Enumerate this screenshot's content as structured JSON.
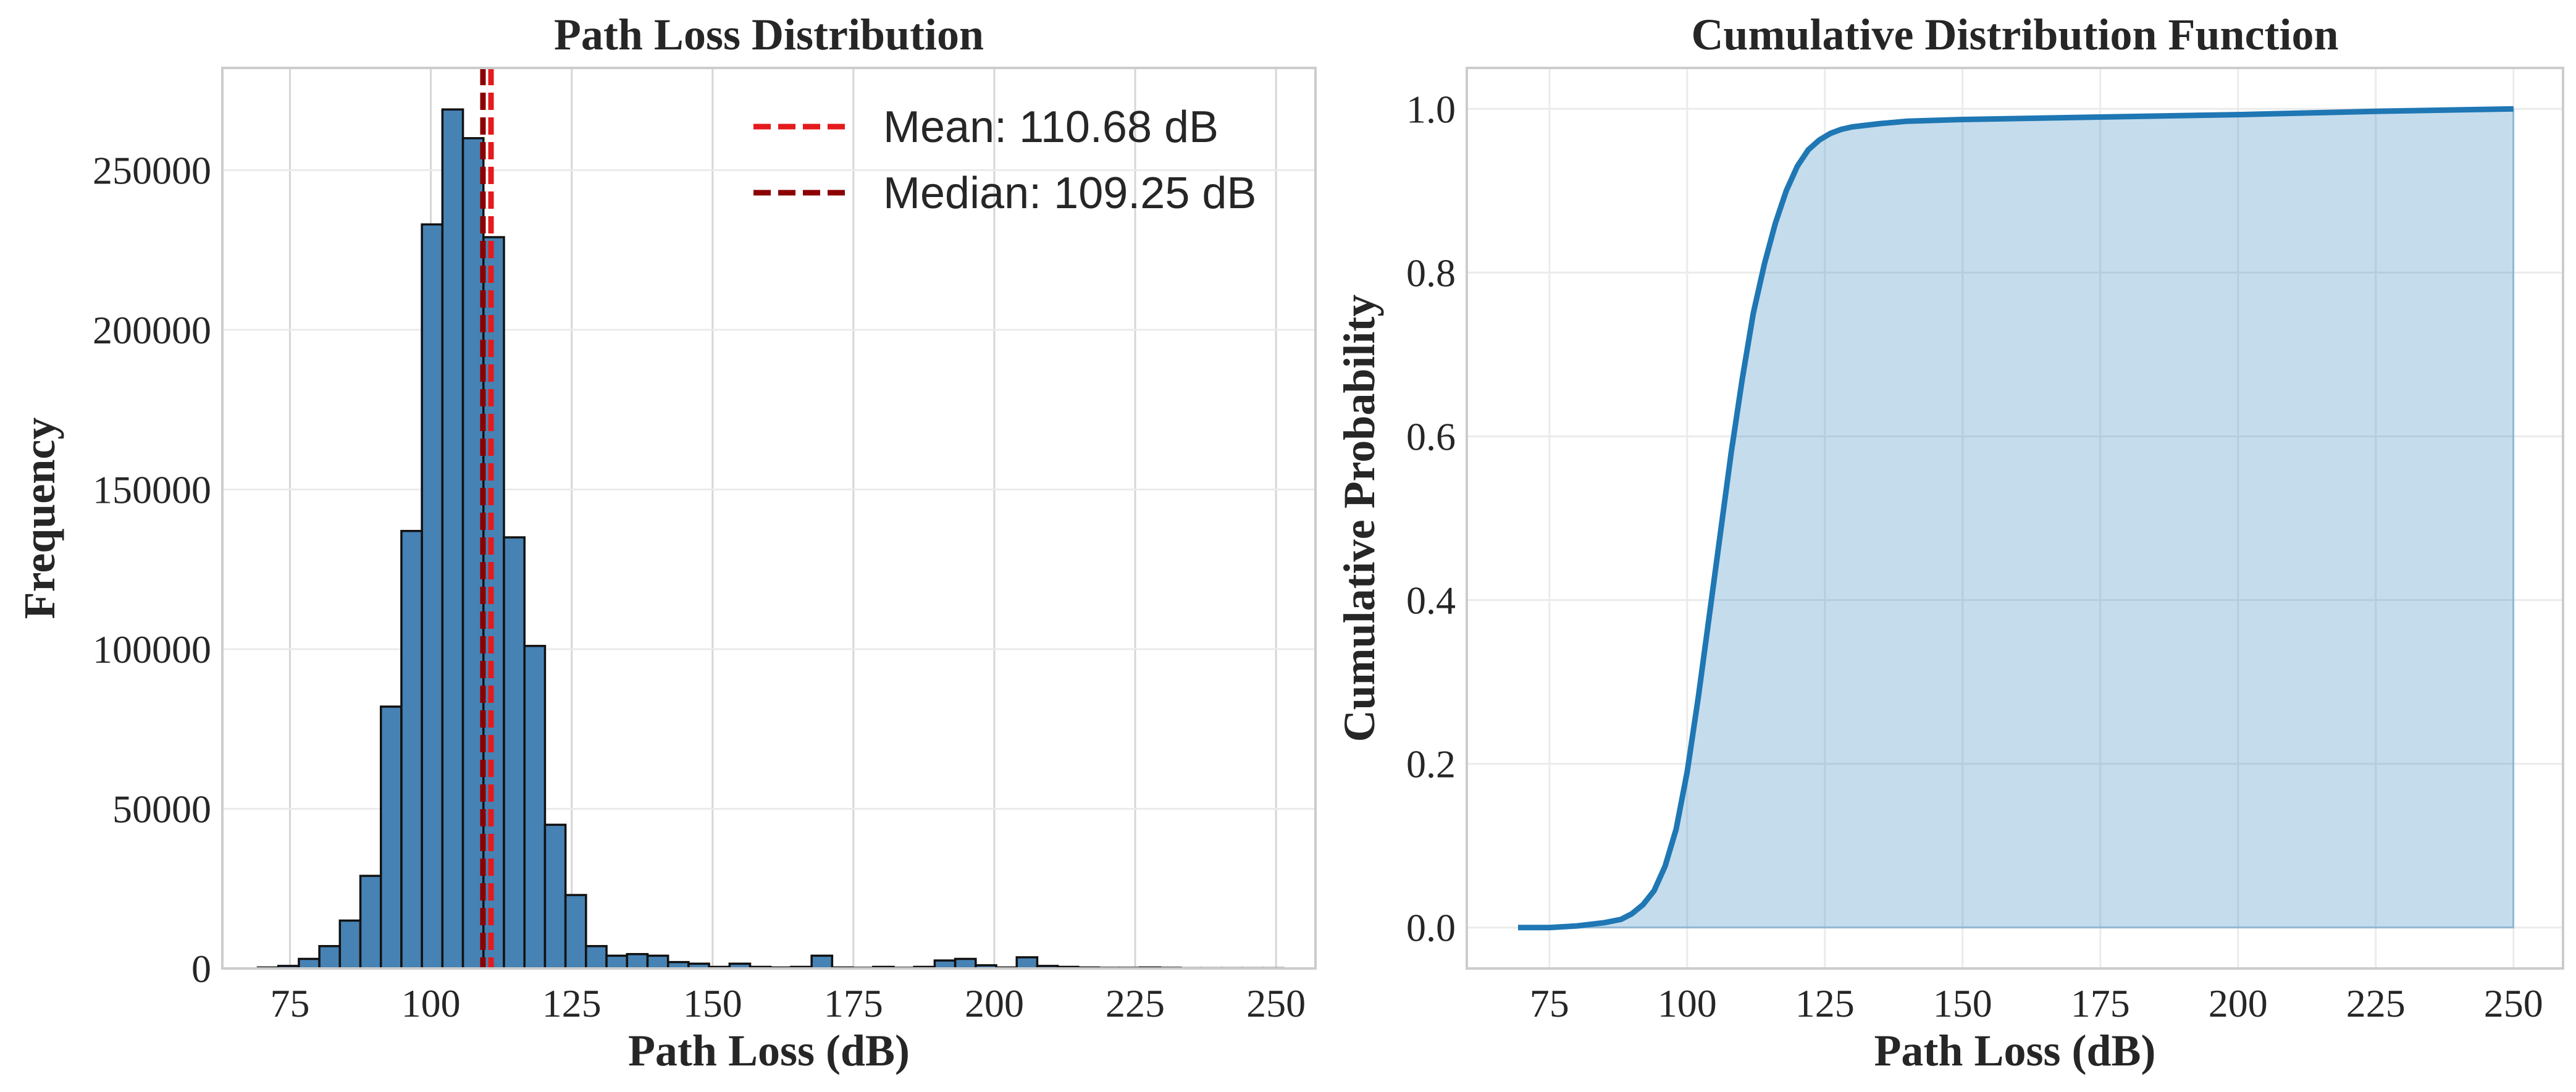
{
  "chart_data": [
    {
      "type": "bar",
      "title": "Path Loss Distribution",
      "xlabel": "Path Loss (dB)",
      "ylabel": "Frequency",
      "xlim": [
        63,
        257
      ],
      "ylim": [
        0,
        282000
      ],
      "xticks": [
        75,
        100,
        125,
        150,
        175,
        200,
        225,
        250
      ],
      "yticks": [
        0,
        50000,
        100000,
        150000,
        200000,
        250000
      ],
      "xtick_labels": [
        "75",
        "100",
        "125",
        "150",
        "175",
        "200",
        "225",
        "250"
      ],
      "ytick_labels": [
        "0",
        "50000",
        "100000",
        "150000",
        "200000",
        "250000"
      ],
      "grid": true,
      "bin_edges": [
        69.3,
        72.94,
        76.58,
        80.22,
        83.86,
        87.5,
        91.14,
        94.78,
        98.42,
        102.06,
        105.7,
        109.34,
        112.98,
        116.62,
        120.26,
        123.9,
        127.54,
        131.18,
        134.82,
        138.46,
        142.1,
        145.74,
        149.38,
        153.02,
        156.66,
        160.3,
        163.94,
        167.58,
        171.22,
        174.86,
        178.5,
        182.14,
        185.78,
        189.42,
        193.06,
        196.7,
        200.34,
        203.98,
        207.62,
        211.26,
        214.9,
        218.54,
        222.18,
        225.82,
        229.46,
        233.1,
        236.74,
        240.38,
        244.02,
        247.66,
        251.3
      ],
      "values": [
        300,
        800,
        3000,
        7000,
        15000,
        29000,
        82000,
        137000,
        233000,
        269000,
        260000,
        229000,
        135000,
        101000,
        45000,
        23000,
        7000,
        4000,
        4500,
        4000,
        2000,
        1500,
        500,
        1500,
        500,
        300,
        500,
        4000,
        300,
        200,
        500,
        200,
        500,
        2500,
        3000,
        1000,
        300,
        3500,
        800,
        500,
        300,
        200,
        200,
        300,
        200,
        100,
        100,
        100,
        100,
        100
      ],
      "vlines": [
        {
          "label": "Mean: 110.68 dB",
          "x": 110.68,
          "color": "#e41a1c",
          "style": "dashed"
        },
        {
          "label": "Median: 109.25 dB",
          "x": 109.25,
          "color": "#8b0000",
          "style": "dashed"
        }
      ],
      "bar_color": "#4682b4",
      "legend_position": "top-right"
    },
    {
      "type": "area",
      "title": "Cumulative Distribution Function",
      "xlabel": "Path Loss (dB)",
      "ylabel": "Cumulative Probability",
      "xlim": [
        60,
        259
      ],
      "ylim": [
        -0.05,
        1.05
      ],
      "xticks": [
        75,
        100,
        125,
        150,
        175,
        200,
        225,
        250
      ],
      "yticks": [
        0.0,
        0.2,
        0.4,
        0.6,
        0.8,
        1.0
      ],
      "xtick_labels": [
        "75",
        "100",
        "125",
        "150",
        "175",
        "200",
        "225",
        "250"
      ],
      "ytick_labels": [
        "0.0",
        "0.2",
        "0.4",
        "0.6",
        "0.8",
        "1.0"
      ],
      "grid": true,
      "x": [
        69.3,
        75,
        80,
        85,
        88,
        90,
        92,
        94,
        96,
        98,
        100,
        102,
        104,
        106,
        108,
        110,
        112,
        114,
        116,
        118,
        120,
        122,
        124,
        126,
        128,
        130,
        135,
        140,
        150,
        175,
        200,
        225,
        250
      ],
      "y": [
        0.0,
        0.0,
        0.002,
        0.006,
        0.01,
        0.017,
        0.028,
        0.045,
        0.075,
        0.12,
        0.19,
        0.28,
        0.38,
        0.48,
        0.58,
        0.67,
        0.75,
        0.81,
        0.86,
        0.9,
        0.93,
        0.95,
        0.962,
        0.97,
        0.975,
        0.978,
        0.982,
        0.985,
        0.987,
        0.99,
        0.993,
        0.997,
        1.0
      ],
      "line_color": "#1f77b4",
      "fill_color": "#1f77b4"
    }
  ]
}
